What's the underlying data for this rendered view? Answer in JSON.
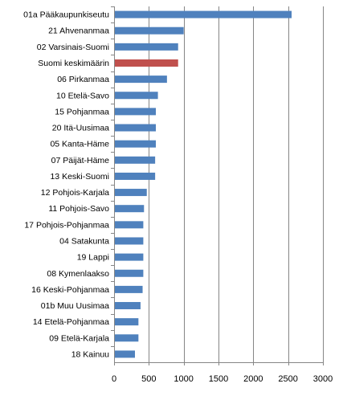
{
  "chart_data": {
    "type": "bar",
    "orientation": "horizontal",
    "categories": [
      "01a Pääkaupunkiseutu",
      "21 Ahvenanmaa",
      "02 Varsinais-Suomi",
      "Suomi keskimäärin",
      "06 Pirkanmaa",
      "10 Etelä-Savo",
      "15 Pohjanmaa",
      "20 Itä-Uusimaa",
      "05 Kanta-Häme",
      "07 Päijät-Häme",
      "13 Keski-Suomi",
      "12 Pohjois-Karjala",
      "11 Pohjois-Savo",
      "17 Pohjois-Pohjanmaa",
      "04 Satakunta",
      "19 Lappi",
      "08 Kymenlaakso",
      "16 Keski-Pohjanmaa",
      "01b Muu Uusimaa",
      "14 Etelä-Pohjanmaa",
      "09 Etelä-Karjala",
      "18 Kainuu"
    ],
    "values": [
      2550,
      1000,
      920,
      920,
      760,
      630,
      600,
      600,
      600,
      590,
      590,
      470,
      430,
      420,
      420,
      420,
      420,
      410,
      380,
      350,
      350,
      300
    ],
    "highlight_category": "Suomi keskimäärin",
    "colors": {
      "bar": "#4f81bd",
      "highlight": "#c0504d",
      "grid": "#868686",
      "axis": "#868686"
    },
    "xlim": [
      0,
      3000
    ],
    "xticks": [
      0,
      500,
      1000,
      1500,
      2000,
      2500,
      3000
    ],
    "grid": true,
    "title": "",
    "xlabel": "",
    "ylabel": ""
  }
}
